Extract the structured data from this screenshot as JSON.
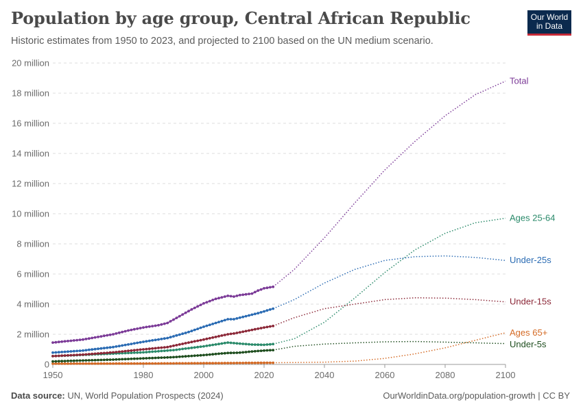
{
  "header": {
    "title": "Population by age group, Central African Republic",
    "subtitle": "Historic estimates from 1950 to 2023, and projected to 2100 based on the UN medium scenario."
  },
  "logo": {
    "line1": "Our World",
    "line2": "in Data"
  },
  "footer": {
    "source_label": "Data source:",
    "source": "UN, World Population Prospects (2024)",
    "link": "OurWorldinData.org/population-growth | CC BY"
  },
  "chart_data": {
    "type": "line",
    "x_ticks": [
      1950,
      1980,
      2000,
      2020,
      2040,
      2060,
      2080,
      2100
    ],
    "y_ticks": [
      "0",
      "2 million",
      "4 million",
      "6 million",
      "8 million",
      "10 million",
      "12 million",
      "14 million",
      "16 million",
      "18 million",
      "20 million"
    ],
    "xlim": [
      1950,
      2100
    ],
    "ylim": [
      0,
      20000000
    ],
    "grid": "horizontal dashed",
    "projection_start": 2023,
    "series": [
      {
        "name": "Total",
        "color": "#7b3a97",
        "x": [
          1950,
          1960,
          1970,
          1975,
          1980,
          1985,
          1988,
          1992,
          1996,
          2000,
          2004,
          2008,
          2010,
          2012,
          2014,
          2016,
          2018,
          2020,
          2023,
          2030,
          2040,
          2050,
          2060,
          2070,
          2080,
          2090,
          2100
        ],
        "y": [
          1450000,
          1650000,
          2000000,
          2250000,
          2450000,
          2600000,
          2750000,
          3200000,
          3650000,
          4050000,
          4350000,
          4550000,
          4500000,
          4600000,
          4650000,
          4700000,
          4900000,
          5050000,
          5150000,
          6300000,
          8400000,
          10700000,
          12900000,
          14800000,
          16500000,
          17900000,
          18800000
        ]
      },
      {
        "name": "Ages 25-64",
        "color": "#2a8a6a",
        "x": [
          1950,
          1960,
          1970,
          1980,
          1990,
          2000,
          2008,
          2012,
          2016,
          2020,
          2023,
          2030,
          2040,
          2050,
          2060,
          2070,
          2080,
          2090,
          2100
        ],
        "y": [
          550000,
          630000,
          720000,
          800000,
          950000,
          1200000,
          1450000,
          1380000,
          1320000,
          1300000,
          1350000,
          1700000,
          2800000,
          4400000,
          6100000,
          7600000,
          8700000,
          9400000,
          9700000
        ]
      },
      {
        "name": "Under-25s",
        "color": "#2a6bb3",
        "x": [
          1950,
          1960,
          1970,
          1980,
          1988,
          1995,
          2000,
          2008,
          2010,
          2014,
          2018,
          2023,
          2030,
          2040,
          2050,
          2060,
          2070,
          2080,
          2090,
          2100
        ],
        "y": [
          780000,
          920000,
          1150000,
          1500000,
          1750000,
          2150000,
          2500000,
          3000000,
          3000000,
          3200000,
          3400000,
          3700000,
          4300000,
          5400000,
          6300000,
          6900000,
          7150000,
          7200000,
          7100000,
          6900000
        ]
      },
      {
        "name": "Under-15s",
        "color": "#8b2737",
        "x": [
          1950,
          1960,
          1970,
          1980,
          1988,
          1995,
          2000,
          2008,
          2010,
          2015,
          2020,
          2023,
          2030,
          2040,
          2050,
          2060,
          2070,
          2080,
          2090,
          2100
        ],
        "y": [
          550000,
          650000,
          800000,
          1000000,
          1150000,
          1450000,
          1650000,
          2000000,
          2050000,
          2250000,
          2450000,
          2550000,
          3100000,
          3700000,
          4000000,
          4300000,
          4420000,
          4400000,
          4300000,
          4150000
        ]
      },
      {
        "name": "Ages 65+",
        "color": "#d46a24",
        "x": [
          1950,
          1980,
          2000,
          2023,
          2040,
          2050,
          2060,
          2070,
          2080,
          2090,
          2100
        ],
        "y": [
          50000,
          60000,
          80000,
          110000,
          150000,
          220000,
          400000,
          700000,
          1100000,
          1600000,
          2100000
        ]
      },
      {
        "name": "Under-5s",
        "color": "#1e4d1e",
        "x": [
          1950,
          1960,
          1970,
          1980,
          1990,
          2000,
          2008,
          2012,
          2016,
          2020,
          2023,
          2030,
          2040,
          2050,
          2060,
          2070,
          2080,
          2090,
          2100
        ],
        "y": [
          200000,
          260000,
          320000,
          400000,
          480000,
          620000,
          760000,
          780000,
          860000,
          920000,
          950000,
          1200000,
          1350000,
          1430000,
          1500000,
          1520000,
          1480000,
          1430000,
          1380000
        ]
      }
    ]
  }
}
